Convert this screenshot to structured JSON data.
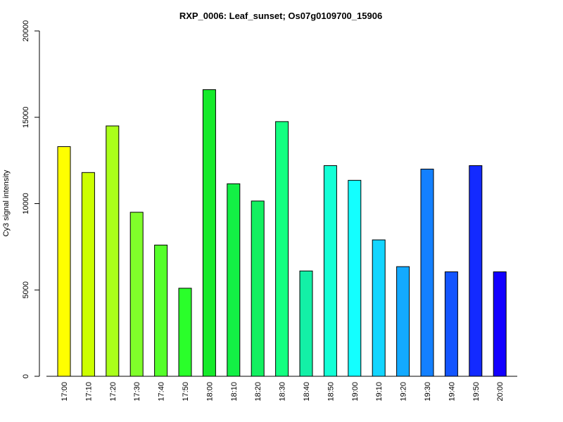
{
  "chart_data": {
    "type": "bar",
    "title": "RXP_0006: Leaf_sunset; Os07g0109700_15906",
    "xlabel": "",
    "ylabel": "Cy3 signal intensity",
    "ylim": [
      0,
      20000
    ],
    "yticks": [
      0,
      5000,
      10000,
      15000,
      20000
    ],
    "grid": false,
    "categories": [
      "17:00",
      "17:10",
      "17:20",
      "17:30",
      "17:40",
      "17:50",
      "18:00",
      "18:10",
      "18:20",
      "18:30",
      "18:40",
      "18:50",
      "19:00",
      "19:10",
      "19:20",
      "19:30",
      "19:40",
      "19:50",
      "20:00"
    ],
    "values": [
      13300,
      11800,
      14500,
      9500,
      7600,
      5100,
      16600,
      11150,
      10150,
      14750,
      6100,
      12200,
      11350,
      7900,
      6350,
      12000,
      6050,
      12200,
      6050
    ],
    "colors": [
      "#ffff00",
      "#ccff00",
      "#aaff1a",
      "#80ff2a",
      "#55ff2a",
      "#2aff2a",
      "#15ea2a",
      "#13f045",
      "#13f060",
      "#13ff80",
      "#13f0a6",
      "#13ffd5",
      "#13ffff",
      "#13d5ff",
      "#13aaff",
      "#1380ff",
      "#1355ff",
      "#132aff",
      "#1300ff"
    ]
  }
}
